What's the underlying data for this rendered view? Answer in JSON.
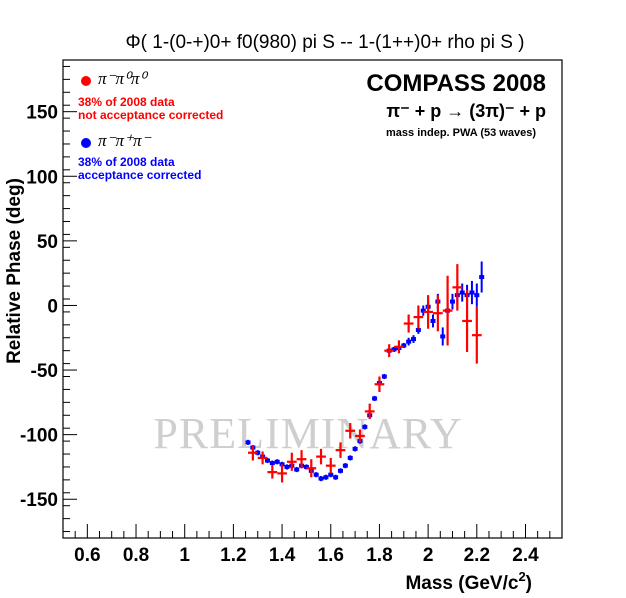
{
  "chart_data": {
    "type": "scatter",
    "title": "Φ( 1-(0-+)0+ f0(980) pi S  --  1-(1++)0+ rho pi S )",
    "xlabel": "Mass (GeV/c",
    "xlabel_sup": "2",
    "xlabel_close": ")",
    "ylabel": "Relative Phase (deg)",
    "xlim": [
      0.5,
      2.55
    ],
    "ylim": [
      -180,
      190
    ],
    "x_ticks": [
      0.6,
      0.8,
      1,
      1.2,
      1.4,
      1.6,
      1.8,
      2,
      2.2,
      2.4
    ],
    "x_tick_labels": [
      "0.6",
      "0.8",
      "1",
      "1.2",
      "1.4",
      "1.6",
      "1.8",
      "2",
      "2.2",
      "2.4"
    ],
    "y_ticks": [
      -150,
      -100,
      -50,
      0,
      50,
      100,
      150
    ],
    "y_tick_labels": [
      "-150",
      "-100",
      "-50",
      "0",
      "50",
      "100",
      "150"
    ],
    "grid": false,
    "legend_position": "top-left",
    "experiment": "COMPASS 2008",
    "reaction": "π⁻ + p →  (3π)⁻ + p",
    "analysis": "mass indep. PWA (53 waves)",
    "watermark": "PRELIMINARY",
    "series": [
      {
        "name": "π⁻π⁰π⁰",
        "note_line1": "38% of 2008 data",
        "note_line2": "not acceptance corrected",
        "color": "#ff0000",
        "marker": "cross",
        "x": [
          1.28,
          1.32,
          1.36,
          1.4,
          1.44,
          1.48,
          1.52,
          1.56,
          1.6,
          1.64,
          1.68,
          1.72,
          1.76,
          1.8,
          1.84,
          1.88,
          1.92,
          1.96,
          2.0,
          2.04,
          2.08,
          2.12,
          2.16,
          2.2
        ],
        "y": [
          -114,
          -118,
          -129,
          -130,
          -121,
          -119,
          -126,
          -117,
          -124,
          -112,
          -97,
          -101,
          -82,
          -61,
          -35,
          -32,
          -14,
          -9,
          -5,
          -6,
          -4,
          14,
          -12,
          -23
        ],
        "yerr": [
          6,
          5,
          5,
          7,
          7,
          7,
          7,
          6,
          6,
          6,
          6,
          5,
          6,
          6,
          5,
          5,
          7,
          9,
          13,
          14,
          27,
          18,
          24,
          22
        ]
      },
      {
        "name": "π⁻π⁺π⁻",
        "note_line1": "38% of 2008 data",
        "note_line2": "acceptance corrected",
        "color": "#0000ff",
        "marker": "dot",
        "x": [
          1.26,
          1.28,
          1.3,
          1.32,
          1.34,
          1.36,
          1.38,
          1.4,
          1.42,
          1.44,
          1.46,
          1.48,
          1.5,
          1.52,
          1.54,
          1.56,
          1.58,
          1.6,
          1.62,
          1.64,
          1.66,
          1.68,
          1.7,
          1.72,
          1.74,
          1.76,
          1.78,
          1.8,
          1.82,
          1.84,
          1.86,
          1.88,
          1.9,
          1.92,
          1.94,
          1.96,
          1.98,
          2.0,
          2.02,
          2.04,
          2.06,
          2.08,
          2.1,
          2.12,
          2.14,
          2.16,
          2.18,
          2.2,
          2.22
        ],
        "y": [
          -106,
          -110,
          -114,
          -117,
          -120,
          -122,
          -121,
          -123,
          -125,
          -124,
          -127,
          -124,
          -125,
          -128,
          -131,
          -134,
          -133,
          -131,
          -133,
          -128,
          -124,
          -118,
          -111,
          -105,
          -94,
          -85,
          -72,
          -60,
          -55,
          -35,
          -34,
          -33,
          -31,
          -28,
          -26,
          -19,
          -4,
          -1,
          -12,
          3,
          -24,
          -4,
          3,
          8,
          10,
          8,
          10,
          8,
          22
        ],
        "yerr": [
          2,
          2,
          2,
          2,
          2,
          2,
          2,
          2,
          2,
          2,
          2,
          2,
          2,
          2,
          2,
          2,
          2,
          2,
          2,
          2,
          2,
          2,
          2,
          2,
          2,
          2,
          2,
          2,
          2,
          2,
          2,
          2,
          2,
          3,
          3,
          3,
          4,
          4,
          5,
          6,
          7,
          6,
          6,
          7,
          7,
          8,
          9,
          9,
          12
        ]
      }
    ]
  }
}
